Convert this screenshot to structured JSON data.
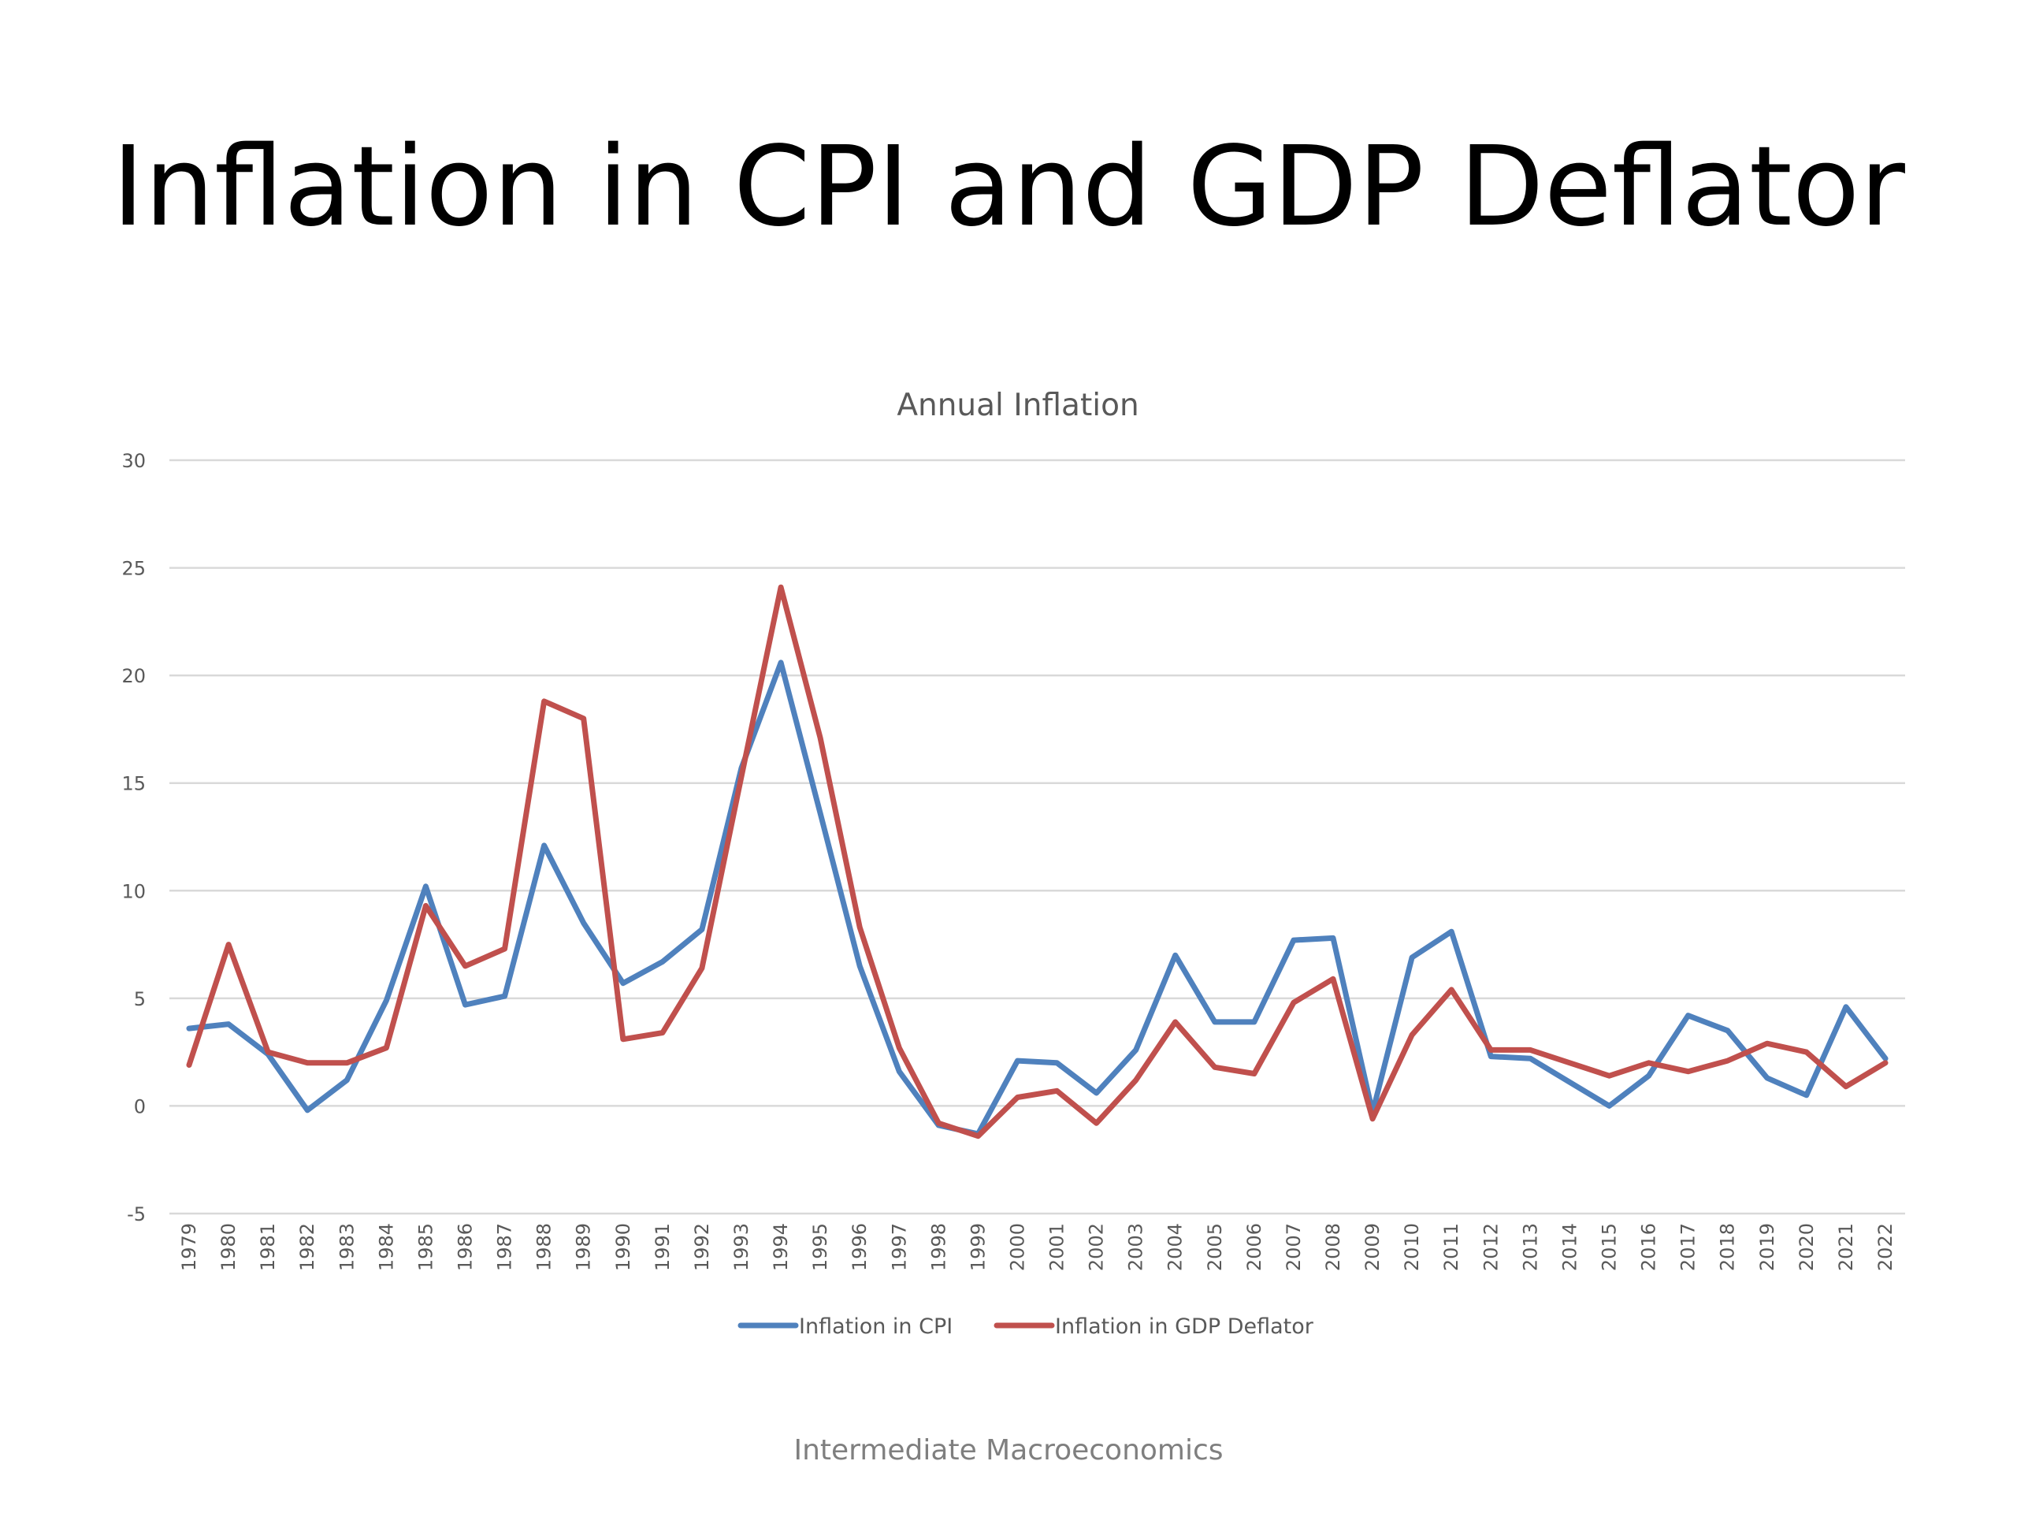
{
  "slide": {
    "title": "Inflation in CPI and GDP Deflator",
    "footer": "Intermediate Macroeconomics"
  },
  "chart_data": {
    "type": "line",
    "title": "Annual Inflation",
    "xlabel": "",
    "ylabel": "",
    "ylim": [
      -5,
      30
    ],
    "yticks": [
      -5,
      0,
      5,
      10,
      15,
      20,
      25,
      30
    ],
    "grid": true,
    "legend": "bottom",
    "x": [
      1979,
      1980,
      1981,
      1982,
      1983,
      1984,
      1985,
      1986,
      1987,
      1988,
      1989,
      1990,
      1991,
      1992,
      1993,
      1994,
      1995,
      1996,
      1997,
      1998,
      1999,
      2000,
      2001,
      2002,
      2003,
      2004,
      2005,
      2006,
      2007,
      2008,
      2009,
      2010,
      2011,
      2012,
      2013,
      2014,
      2015,
      2016,
      2017,
      2018,
      2019,
      2020,
      2021,
      2022
    ],
    "series": [
      {
        "name": "Inflation in CPI",
        "color": "#4f81bd",
        "values": [
          3.6,
          3.8,
          2.4,
          -0.2,
          1.2,
          4.9,
          10.2,
          4.7,
          5.1,
          12.1,
          8.5,
          5.7,
          6.7,
          8.2,
          15.7,
          20.6,
          13.6,
          6.5,
          1.6,
          -0.9,
          -1.3,
          2.1,
          2.0,
          0.6,
          2.6,
          7.0,
          3.9,
          3.9,
          7.7,
          7.8,
          -0.3,
          6.9,
          8.1,
          2.3,
          2.2,
          1.1,
          0.0,
          1.4,
          4.2,
          3.5,
          1.3,
          0.5,
          4.6,
          2.2
        ]
      },
      {
        "name": "Inflation in GDP Deflator",
        "color": "#c0504d",
        "values": [
          1.9,
          7.5,
          2.5,
          2.0,
          2.0,
          2.7,
          9.3,
          6.5,
          7.3,
          18.8,
          18.0,
          3.1,
          3.4,
          6.4,
          15.3,
          24.1,
          17.1,
          8.3,
          2.7,
          -0.8,
          -1.4,
          0.4,
          0.7,
          -0.8,
          1.2,
          3.9,
          1.8,
          1.5,
          4.8,
          5.9,
          -0.6,
          3.3,
          5.4,
          2.6,
          2.6,
          2.0,
          1.4,
          2.0,
          1.6,
          2.1,
          2.9,
          2.5,
          0.9,
          2.0
        ]
      }
    ]
  }
}
